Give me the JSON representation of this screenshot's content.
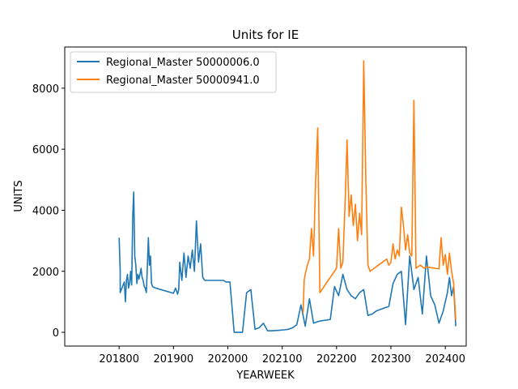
{
  "chart_data": {
    "type": "line",
    "title": "Units for IE",
    "xlabel": "YEARWEEK",
    "ylabel": "UNITS",
    "xlim": [
      201700,
      202420
    ],
    "ylim": [
      -450,
      9350
    ],
    "xticks": [
      201800,
      201900,
      202000,
      202100,
      202200,
      202300,
      202400
    ],
    "yticks": [
      0,
      2000,
      4000,
      6000,
      8000
    ],
    "grid": false,
    "legend": "top-left",
    "colors": {
      "series_0": "#1f77b4",
      "series_1": "#ff7f0e"
    },
    "series": [
      {
        "name": "Regional_Master 50000006.0",
        "x": [
          201752,
          201753,
          201801,
          201805,
          201806,
          201807,
          201808,
          201809,
          201810,
          201811,
          201812,
          201813,
          201814,
          201815,
          201816,
          201817,
          201818,
          201819,
          201820,
          201821,
          201822,
          201823,
          201824,
          201825,
          201826,
          201827,
          201828,
          201829,
          201830,
          201831,
          201832,
          201833,
          201834,
          201835,
          201836,
          201837,
          201838,
          201839,
          201840,
          201841,
          201842,
          201843,
          201844,
          201845,
          201846,
          201847,
          201848,
          201849,
          201850,
          201851,
          201852,
          201902,
          201904,
          201905,
          201906,
          201908,
          201910,
          201912,
          201914,
          201916,
          201918,
          201920,
          201922,
          201924,
          201926,
          201928,
          201930,
          201932,
          201934,
          201936,
          201938,
          201940,
          201942,
          201944,
          201946,
          201948,
          201950,
          201952,
          202002,
          202006,
          202010,
          202014,
          202018,
          202022,
          202026,
          202030,
          202034,
          202038,
          202042,
          202046,
          202050,
          202102,
          202106,
          202110,
          202114,
          202118,
          202122,
          202126,
          202130,
          202134,
          202138,
          202142,
          202146,
          202150,
          202202,
          202206,
          202210,
          202214,
          202218,
          202222,
          202226,
          202230,
          202234,
          202238,
          202242,
          202246,
          202250,
          202302,
          202306,
          202310,
          202314,
          202318,
          202322,
          202326,
          202330,
          202334,
          202338,
          202342,
          202346,
          202350,
          202402,
          202404,
          202406,
          202408,
          202410
        ],
        "y": [
          3100,
          2000,
          1300,
          1650,
          1000,
          1700,
          1900,
          1450,
          1600,
          2000,
          1550,
          3800,
          4600,
          2500,
          2200,
          1600,
          1900,
          1750,
          1900,
          2100,
          1800,
          1700,
          1500,
          1450,
          1300,
          2100,
          3100,
          2200,
          2500,
          1600,
          1500,
          1480,
          1460,
          1450,
          1440,
          1430,
          1420,
          1410,
          1400,
          1390,
          1380,
          1370,
          1360,
          1350,
          1340,
          1330,
          1320,
          1310,
          1300,
          1290,
          1280,
          1450,
          1250,
          1400,
          2300,
          1700,
          2600,
          1800,
          2500,
          2100,
          2700,
          2000,
          3650,
          2300,
          2900,
          1800,
          1700,
          1700,
          1700,
          1700,
          1700,
          1700,
          1700,
          1700,
          1700,
          1700,
          1650,
          1650,
          1650,
          0,
          0,
          0,
          1300,
          1400,
          100,
          150,
          300,
          50,
          50,
          60,
          70,
          80,
          100,
          150,
          250,
          900,
          200,
          1100,
          300,
          350,
          380,
          400,
          420,
          1500,
          1200,
          1900,
          1400,
          1200,
          1100,
          1300,
          1400,
          550,
          600,
          700,
          750,
          800,
          850,
          1600,
          1900,
          2000,
          250,
          2500,
          1400,
          1800,
          600,
          2500,
          1200,
          900,
          300,
          700,
          1300,
          1800,
          1200,
          1500,
          200
        ],
        "_note": null
      },
      {
        "name": "Regional_Master 50000941.0",
        "x": [
          202120,
          202121,
          202122,
          202124,
          202126,
          202128,
          202130,
          202132,
          202134,
          202136,
          202138,
          202140,
          202142,
          202144,
          202146,
          202148,
          202150,
          202152,
          202202,
          202204,
          202206,
          202208,
          202210,
          202212,
          202214,
          202216,
          202218,
          202220,
          202222,
          202224,
          202226,
          202228,
          202230,
          202232,
          202234,
          202236,
          202238,
          202240,
          202242,
          202244,
          202246,
          202248,
          202250,
          202252,
          202302,
          202304,
          202306,
          202308,
          202310,
          202312,
          202314,
          202316,
          202318,
          202320,
          202322,
          202324,
          202326,
          202328,
          202330,
          202332,
          202334,
          202336,
          202338,
          202340,
          202342,
          202344,
          202346,
          202348,
          202350,
          202352,
          202402,
          202404,
          202406,
          202408,
          202410
        ],
        "y": [
          650,
          1700,
          1900,
          2200,
          2400,
          3400,
          2500,
          5000,
          6700,
          1300,
          1400,
          1500,
          1600,
          1700,
          1800,
          1900,
          2000,
          2100,
          3400,
          2100,
          2300,
          4100,
          6300,
          3800,
          4500,
          3500,
          4200,
          3000,
          3900,
          3200,
          8900,
          5000,
          2200,
          2000,
          2050,
          2100,
          2150,
          2200,
          2250,
          2300,
          2350,
          2400,
          2200,
          2300,
          2900,
          2400,
          2700,
          2500,
          4100,
          3500,
          2700,
          3200,
          2600,
          2500,
          7600,
          2100,
          2150,
          2200,
          2150,
          2100,
          2150,
          2130,
          2120,
          2110,
          2100,
          2090,
          2080,
          3100,
          2200,
          2550,
          1900,
          2600,
          2000,
          1600,
          400
        ]
      }
    ]
  }
}
